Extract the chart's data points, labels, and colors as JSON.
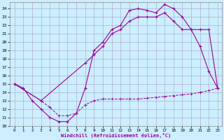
{
  "xlabel": "Windchill (Refroidissement éolien,°C)",
  "bg_color": "#cceeff",
  "grid_color": "#b0b0cc",
  "line_color": "#990099",
  "xlim": [
    -0.5,
    23.5
  ],
  "ylim": [
    10,
    24.8
  ],
  "xticks": [
    0,
    1,
    2,
    3,
    4,
    5,
    6,
    7,
    8,
    9,
    10,
    11,
    12,
    13,
    14,
    15,
    16,
    17,
    18,
    19,
    20,
    21,
    22,
    23
  ],
  "yticks": [
    10,
    11,
    12,
    13,
    14,
    15,
    16,
    17,
    18,
    19,
    20,
    21,
    22,
    23,
    24
  ],
  "line1_x": [
    0,
    1,
    2,
    3,
    4,
    5,
    6,
    7,
    8,
    9,
    10,
    11,
    12,
    13,
    14,
    15,
    16,
    17,
    18,
    19,
    20,
    21,
    22,
    23
  ],
  "line1_y": [
    15,
    14.5,
    13,
    12,
    11,
    10.5,
    10.5,
    11.5,
    14.5,
    19,
    20,
    21.5,
    22,
    23.8,
    24,
    23.8,
    23.5,
    24.5,
    24,
    23,
    21.5,
    19.5,
    16.5,
    14.5
  ],
  "line2_x": [
    0,
    3,
    4,
    5,
    6,
    7,
    8,
    9,
    10,
    11,
    12,
    13,
    14,
    15,
    16,
    17,
    18,
    19,
    20,
    21,
    22,
    23
  ],
  "line2_y": [
    15,
    13,
    12.2,
    11.2,
    11.2,
    11.5,
    12.5,
    13,
    13.2,
    13.2,
    13.2,
    13.2,
    13.2,
    13.3,
    13.4,
    13.5,
    13.6,
    13.7,
    13.8,
    14,
    14.2,
    14.5
  ],
  "line3_x": [
    0,
    3,
    8,
    9,
    10,
    11,
    12,
    13,
    14,
    15,
    16,
    17,
    18,
    19,
    20,
    21,
    22,
    23
  ],
  "line3_y": [
    15,
    13,
    17.5,
    18.5,
    19.5,
    21,
    21.5,
    22.5,
    23,
    23,
    23,
    23.5,
    22.5,
    21.5,
    21.5,
    21.5,
    21.5,
    14.5
  ]
}
